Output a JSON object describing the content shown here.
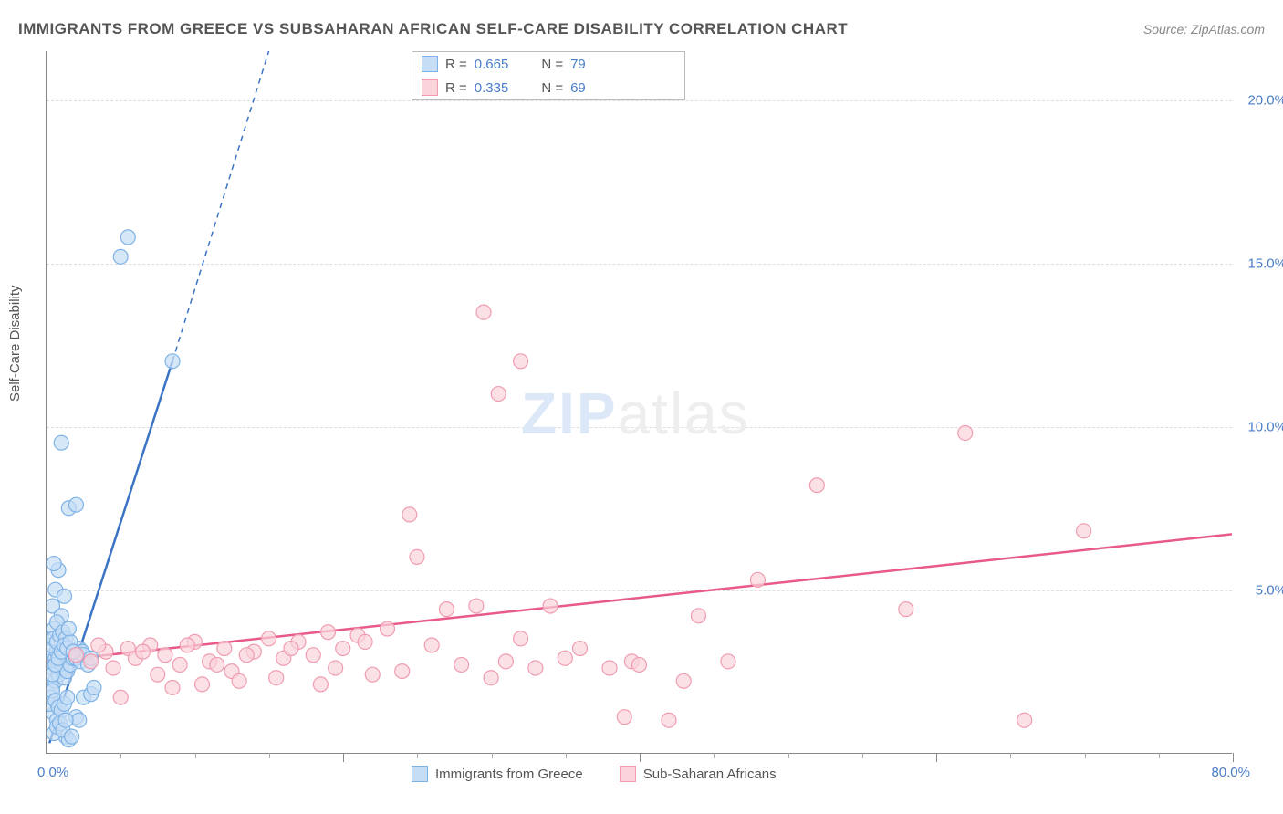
{
  "title": "IMMIGRANTS FROM GREECE VS SUBSAHARAN AFRICAN SELF-CARE DISABILITY CORRELATION CHART",
  "source": "Source: ZipAtlas.com",
  "ylabel": "Self-Care Disability",
  "watermark_zip": "ZIP",
  "watermark_atlas": "atlas",
  "chart": {
    "type": "scatter",
    "xlim": [
      0,
      80
    ],
    "ylim": [
      0,
      21.5
    ],
    "y_ticks": [
      5.0,
      10.0,
      15.0,
      20.0
    ],
    "y_tick_labels": [
      "5.0%",
      "10.0%",
      "15.0%",
      "20.0%"
    ],
    "x_origin_label": "0.0%",
    "x_max_label": "80.0%",
    "x_minor_ticks": [
      5,
      10,
      15,
      25,
      30,
      35,
      45,
      50,
      55,
      65,
      70,
      75
    ],
    "x_major_ticks": [
      20,
      40,
      60,
      80
    ],
    "background_color": "#ffffff",
    "grid_color": "#dddddd",
    "axis_color": "#888888",
    "tick_label_color": "#4a7ec9",
    "series": [
      {
        "id": "greece",
        "label": "Immigrants from Greece",
        "color_fill": "#c5ddf5",
        "color_stroke": "#7fb3e6",
        "line_color": "#3b74c4",
        "marker_radius": 8,
        "marker_opacity": 0.7,
        "r_value": "0.665",
        "n_value": "79",
        "trend": {
          "x1": 0.2,
          "y1": 0.3,
          "x2_solid": 8.5,
          "y2_solid": 12.0,
          "x2_dash": 15.0,
          "y2_dash": 21.5
        },
        "points": [
          [
            0.3,
            2.8
          ],
          [
            0.4,
            2.6
          ],
          [
            0.5,
            3.0
          ],
          [
            0.6,
            2.9
          ],
          [
            0.7,
            3.1
          ],
          [
            0.8,
            2.7
          ],
          [
            0.9,
            3.2
          ],
          [
            1.0,
            2.5
          ],
          [
            1.1,
            3.3
          ],
          [
            1.2,
            2.8
          ],
          [
            0.5,
            1.2
          ],
          [
            0.7,
            1.0
          ],
          [
            1.3,
            0.5
          ],
          [
            1.5,
            0.4
          ],
          [
            2.0,
            1.1
          ],
          [
            2.2,
            1.0
          ],
          [
            2.5,
            1.7
          ],
          [
            3.0,
            1.8
          ],
          [
            3.2,
            2.0
          ],
          [
            0.4,
            4.5
          ],
          [
            0.6,
            5.0
          ],
          [
            0.8,
            5.6
          ],
          [
            1.0,
            4.2
          ],
          [
            1.2,
            4.8
          ],
          [
            0.3,
            3.5
          ],
          [
            0.5,
            3.8
          ],
          [
            0.7,
            4.0
          ],
          [
            0.4,
            2.0
          ],
          [
            0.6,
            2.2
          ],
          [
            0.8,
            2.4
          ],
          [
            1.0,
            2.6
          ],
          [
            1.2,
            2.3
          ],
          [
            1.4,
            2.5
          ],
          [
            1.6,
            2.7
          ],
          [
            1.8,
            2.9
          ],
          [
            2.0,
            3.0
          ],
          [
            2.2,
            3.2
          ],
          [
            2.4,
            3.1
          ],
          [
            0.5,
            5.8
          ],
          [
            1.5,
            7.5
          ],
          [
            2.0,
            7.6
          ],
          [
            1.0,
            9.5
          ],
          [
            5.0,
            15.2
          ],
          [
            5.5,
            15.8
          ],
          [
            8.5,
            12.0
          ],
          [
            0.2,
            1.5
          ],
          [
            0.3,
            1.7
          ],
          [
            0.4,
            1.9
          ],
          [
            0.6,
            1.6
          ],
          [
            0.8,
            1.4
          ],
          [
            1.0,
            1.3
          ],
          [
            1.2,
            1.5
          ],
          [
            1.4,
            1.7
          ],
          [
            0.5,
            0.6
          ],
          [
            0.7,
            0.8
          ],
          [
            0.9,
            0.9
          ],
          [
            1.1,
            0.7
          ],
          [
            1.3,
            1.0
          ],
          [
            1.7,
            0.5
          ],
          [
            2.0,
            2.9
          ],
          [
            2.3,
            2.8
          ],
          [
            2.5,
            3.0
          ],
          [
            2.8,
            2.7
          ],
          [
            3.0,
            2.9
          ],
          [
            0.3,
            3.3
          ],
          [
            0.5,
            3.5
          ],
          [
            0.7,
            3.4
          ],
          [
            0.9,
            3.6
          ],
          [
            1.1,
            3.7
          ],
          [
            1.3,
            3.5
          ],
          [
            0.4,
            2.4
          ],
          [
            0.6,
            2.7
          ],
          [
            0.8,
            2.9
          ],
          [
            1.0,
            3.1
          ],
          [
            1.2,
            3.3
          ],
          [
            1.4,
            3.2
          ],
          [
            1.6,
            3.4
          ],
          [
            1.8,
            3.1
          ],
          [
            1.5,
            3.8
          ]
        ]
      },
      {
        "id": "subsaharan",
        "label": "Sub-Saharan Africans",
        "color_fill": "#fad3db",
        "color_stroke": "#f09cb0",
        "line_color": "#e85a8a",
        "marker_radius": 8,
        "marker_opacity": 0.7,
        "r_value": "0.335",
        "n_value": "69",
        "trend": {
          "x1": 0,
          "y1": 2.8,
          "x2_solid": 80,
          "y2_solid": 6.7
        },
        "points": [
          [
            2.0,
            3.0
          ],
          [
            3.0,
            2.8
          ],
          [
            4.0,
            3.1
          ],
          [
            5.0,
            1.7
          ],
          [
            5.5,
            3.2
          ],
          [
            6.0,
            2.9
          ],
          [
            7.0,
            3.3
          ],
          [
            8.0,
            3.0
          ],
          [
            8.5,
            2.0
          ],
          [
            9.0,
            2.7
          ],
          [
            10.0,
            3.4
          ],
          [
            10.5,
            2.1
          ],
          [
            11.0,
            2.8
          ],
          [
            12.0,
            3.2
          ],
          [
            12.5,
            2.5
          ],
          [
            13.0,
            2.2
          ],
          [
            14.0,
            3.1
          ],
          [
            15.0,
            3.5
          ],
          [
            15.5,
            2.3
          ],
          [
            16.0,
            2.9
          ],
          [
            17.0,
            3.4
          ],
          [
            18.0,
            3.0
          ],
          [
            18.5,
            2.1
          ],
          [
            19.0,
            3.7
          ],
          [
            20.0,
            3.2
          ],
          [
            21.0,
            3.6
          ],
          [
            22.0,
            2.4
          ],
          [
            23.0,
            3.8
          ],
          [
            24.0,
            2.5
          ],
          [
            24.5,
            7.3
          ],
          [
            25.0,
            6.0
          ],
          [
            26.0,
            3.3
          ],
          [
            27.0,
            4.4
          ],
          [
            28.0,
            2.7
          ],
          [
            29.5,
            13.5
          ],
          [
            29.0,
            4.5
          ],
          [
            30.0,
            2.3
          ],
          [
            31.0,
            2.8
          ],
          [
            32.0,
            3.5
          ],
          [
            32.0,
            12.0
          ],
          [
            33.0,
            2.6
          ],
          [
            34.0,
            4.5
          ],
          [
            30.5,
            11.0
          ],
          [
            35.0,
            2.9
          ],
          [
            36.0,
            3.2
          ],
          [
            38.0,
            2.6
          ],
          [
            39.0,
            1.1
          ],
          [
            39.5,
            2.8
          ],
          [
            40.0,
            2.7
          ],
          [
            42.0,
            1.0
          ],
          [
            43.0,
            2.2
          ],
          [
            44.0,
            4.2
          ],
          [
            46.0,
            2.8
          ],
          [
            48.0,
            5.3
          ],
          [
            52.0,
            8.2
          ],
          [
            58.0,
            4.4
          ],
          [
            62.0,
            9.8
          ],
          [
            66.0,
            1.0
          ],
          [
            70.0,
            6.8
          ],
          [
            3.5,
            3.3
          ],
          [
            4.5,
            2.6
          ],
          [
            6.5,
            3.1
          ],
          [
            7.5,
            2.4
          ],
          [
            9.5,
            3.3
          ],
          [
            11.5,
            2.7
          ],
          [
            13.5,
            3.0
          ],
          [
            16.5,
            3.2
          ],
          [
            19.5,
            2.6
          ],
          [
            21.5,
            3.4
          ]
        ]
      }
    ]
  },
  "legend_top": {
    "r_label": "R =",
    "n_label": "N ="
  },
  "legend_bottom": {
    "series1_label": "Immigrants from Greece",
    "series2_label": "Sub-Saharan Africans"
  }
}
